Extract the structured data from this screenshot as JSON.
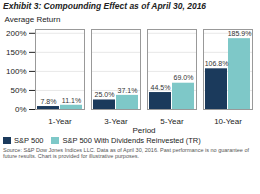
{
  "chart_data": {
    "type": "bar",
    "title": "Exhibit 3: Compounding Effect as of April 30, 2016",
    "xlabel": "Period",
    "ylabel": "Average Return",
    "categories": [
      "1-Year",
      "3-Year",
      "5-Year",
      "10-Year"
    ],
    "series": [
      {
        "name": "S&P 500",
        "color": "#1b3a5c",
        "values": [
          7.8,
          25.0,
          44.5,
          106.8
        ],
        "value_labels": [
          "7.8%",
          "25.0%",
          "44.5%",
          "106.8%"
        ]
      },
      {
        "name": "S&P 500 With Dividends Reinvested (TR)",
        "color": "#7ec8c8",
        "values": [
          11.1,
          37.1,
          69.0,
          185.9
        ],
        "value_labels": [
          "11.1%",
          "37.1%",
          "69.0%",
          "185.9%"
        ]
      }
    ],
    "ylim": [
      0,
      210
    ],
    "yticks": [
      {
        "value": 0,
        "label": "0%"
      },
      {
        "value": 50,
        "label": "50%"
      },
      {
        "value": 100,
        "label": "100%"
      },
      {
        "value": 150,
        "label": "150%"
      },
      {
        "value": 200,
        "label": "200%"
      }
    ],
    "grid": true,
    "data_labels": true,
    "legend": "bottom",
    "annotations": [
      "Source: S&P Dow Jones Indices LLC.  Data as of April 30, 2016. Past performance is no guarantee of\nfuture results.  Chart is provided for illustrative purposes."
    ]
  }
}
